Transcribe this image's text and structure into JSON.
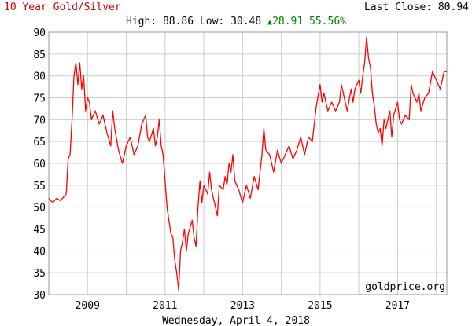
{
  "header": {
    "title": "10 Year Gold/Silver",
    "last_close_label": "Last Close:",
    "last_close_value": "80.94",
    "high_label": "High:",
    "high_value": "88.86",
    "low_label": "Low:",
    "low_value": "30.48",
    "change_value": "28.91",
    "change_pct": "55.56%"
  },
  "footer": {
    "date": "Wednesday, April 4, 2018",
    "source": "goldprice.org"
  },
  "colors": {
    "line": "#ff0000",
    "title": "#cc0000",
    "change": "#008000",
    "grid": "#cccccc",
    "plot_border": "#999999"
  },
  "chart_data": {
    "type": "line",
    "title": "10 Year Gold/Silver",
    "xlabel": "",
    "ylabel": "",
    "ylim": [
      30,
      90
    ],
    "xlim": [
      2008.0,
      2018.27
    ],
    "y_ticks": [
      30,
      35,
      40,
      45,
      50,
      55,
      60,
      65,
      70,
      75,
      80,
      85,
      90
    ],
    "x_ticks": [
      2009,
      2011,
      2013,
      2015,
      2017
    ],
    "x_grid": [
      2009,
      2010,
      2011,
      2012,
      2013,
      2014,
      2015,
      2016,
      2017,
      2018
    ],
    "grid": true,
    "series": [
      {
        "values": [
          [
            2008.0,
            52
          ],
          [
            2008.1,
            51
          ],
          [
            2008.2,
            52
          ],
          [
            2008.3,
            51.5
          ],
          [
            2008.45,
            53
          ],
          [
            2008.5,
            61
          ],
          [
            2008.55,
            62
          ],
          [
            2008.6,
            70
          ],
          [
            2008.65,
            80
          ],
          [
            2008.7,
            83
          ],
          [
            2008.75,
            78
          ],
          [
            2008.8,
            83
          ],
          [
            2008.85,
            77
          ],
          [
            2008.9,
            80
          ],
          [
            2008.95,
            72
          ],
          [
            2009.0,
            75
          ],
          [
            2009.05,
            74
          ],
          [
            2009.1,
            70
          ],
          [
            2009.2,
            72
          ],
          [
            2009.3,
            69
          ],
          [
            2009.4,
            71
          ],
          [
            2009.5,
            67
          ],
          [
            2009.6,
            64
          ],
          [
            2009.65,
            72
          ],
          [
            2009.7,
            68
          ],
          [
            2009.8,
            63
          ],
          [
            2009.9,
            60
          ],
          [
            2010.0,
            64
          ],
          [
            2010.1,
            66
          ],
          [
            2010.2,
            62
          ],
          [
            2010.3,
            64
          ],
          [
            2010.4,
            69
          ],
          [
            2010.5,
            71
          ],
          [
            2010.55,
            66
          ],
          [
            2010.6,
            65
          ],
          [
            2010.7,
            68
          ],
          [
            2010.75,
            64
          ],
          [
            2010.8,
            66
          ],
          [
            2010.85,
            70
          ],
          [
            2010.9,
            64
          ],
          [
            2010.95,
            62
          ],
          [
            2011.0,
            56
          ],
          [
            2011.05,
            50
          ],
          [
            2011.1,
            47
          ],
          [
            2011.15,
            44
          ],
          [
            2011.2,
            43
          ],
          [
            2011.25,
            38
          ],
          [
            2011.3,
            35
          ],
          [
            2011.35,
            31
          ],
          [
            2011.4,
            40
          ],
          [
            2011.45,
            42
          ],
          [
            2011.5,
            45
          ],
          [
            2011.55,
            40
          ],
          [
            2011.6,
            44
          ],
          [
            2011.7,
            47
          ],
          [
            2011.75,
            43
          ],
          [
            2011.8,
            41
          ],
          [
            2011.85,
            50
          ],
          [
            2011.9,
            56
          ],
          [
            2011.95,
            51
          ],
          [
            2012.0,
            55
          ],
          [
            2012.1,
            53
          ],
          [
            2012.15,
            58
          ],
          [
            2012.2,
            54
          ],
          [
            2012.3,
            50
          ],
          [
            2012.35,
            48
          ],
          [
            2012.4,
            55
          ],
          [
            2012.5,
            54
          ],
          [
            2012.55,
            57
          ],
          [
            2012.6,
            55
          ],
          [
            2012.65,
            60
          ],
          [
            2012.7,
            58
          ],
          [
            2012.75,
            62
          ],
          [
            2012.8,
            56
          ],
          [
            2012.9,
            54
          ],
          [
            2013.0,
            51
          ],
          [
            2013.1,
            55
          ],
          [
            2013.2,
            52
          ],
          [
            2013.3,
            57
          ],
          [
            2013.4,
            54
          ],
          [
            2013.5,
            62
          ],
          [
            2013.55,
            68
          ],
          [
            2013.6,
            63
          ],
          [
            2013.7,
            62
          ],
          [
            2013.8,
            58
          ],
          [
            2013.9,
            63
          ],
          [
            2014.0,
            60
          ],
          [
            2014.1,
            62
          ],
          [
            2014.2,
            64
          ],
          [
            2014.3,
            61
          ],
          [
            2014.4,
            63
          ],
          [
            2014.5,
            66
          ],
          [
            2014.6,
            62
          ],
          [
            2014.7,
            66
          ],
          [
            2014.8,
            65
          ],
          [
            2014.9,
            73
          ],
          [
            2015.0,
            78
          ],
          [
            2015.05,
            74
          ],
          [
            2015.1,
            76
          ],
          [
            2015.2,
            72
          ],
          [
            2015.3,
            74
          ],
          [
            2015.4,
            72
          ],
          [
            2015.5,
            74
          ],
          [
            2015.55,
            78
          ],
          [
            2015.6,
            76
          ],
          [
            2015.7,
            72
          ],
          [
            2015.8,
            77
          ],
          [
            2015.85,
            74
          ],
          [
            2015.9,
            77
          ],
          [
            2016.0,
            79
          ],
          [
            2016.05,
            76
          ],
          [
            2016.1,
            80
          ],
          [
            2016.15,
            83
          ],
          [
            2016.2,
            88.86
          ],
          [
            2016.25,
            84
          ],
          [
            2016.3,
            82
          ],
          [
            2016.35,
            76
          ],
          [
            2016.4,
            73
          ],
          [
            2016.45,
            69
          ],
          [
            2016.5,
            67
          ],
          [
            2016.55,
            68
          ],
          [
            2016.6,
            64
          ],
          [
            2016.65,
            70
          ],
          [
            2016.7,
            68
          ],
          [
            2016.8,
            72
          ],
          [
            2016.85,
            66
          ],
          [
            2016.9,
            71
          ],
          [
            2017.0,
            74
          ],
          [
            2017.05,
            70
          ],
          [
            2017.1,
            69
          ],
          [
            2017.2,
            71
          ],
          [
            2017.3,
            70
          ],
          [
            2017.35,
            78
          ],
          [
            2017.4,
            76
          ],
          [
            2017.5,
            74
          ],
          [
            2017.55,
            76
          ],
          [
            2017.6,
            72
          ],
          [
            2017.7,
            75
          ],
          [
            2017.8,
            76
          ],
          [
            2017.9,
            81
          ],
          [
            2018.0,
            79
          ],
          [
            2018.1,
            77
          ],
          [
            2018.15,
            79
          ],
          [
            2018.2,
            81
          ],
          [
            2018.27,
            80.94
          ]
        ]
      }
    ]
  }
}
